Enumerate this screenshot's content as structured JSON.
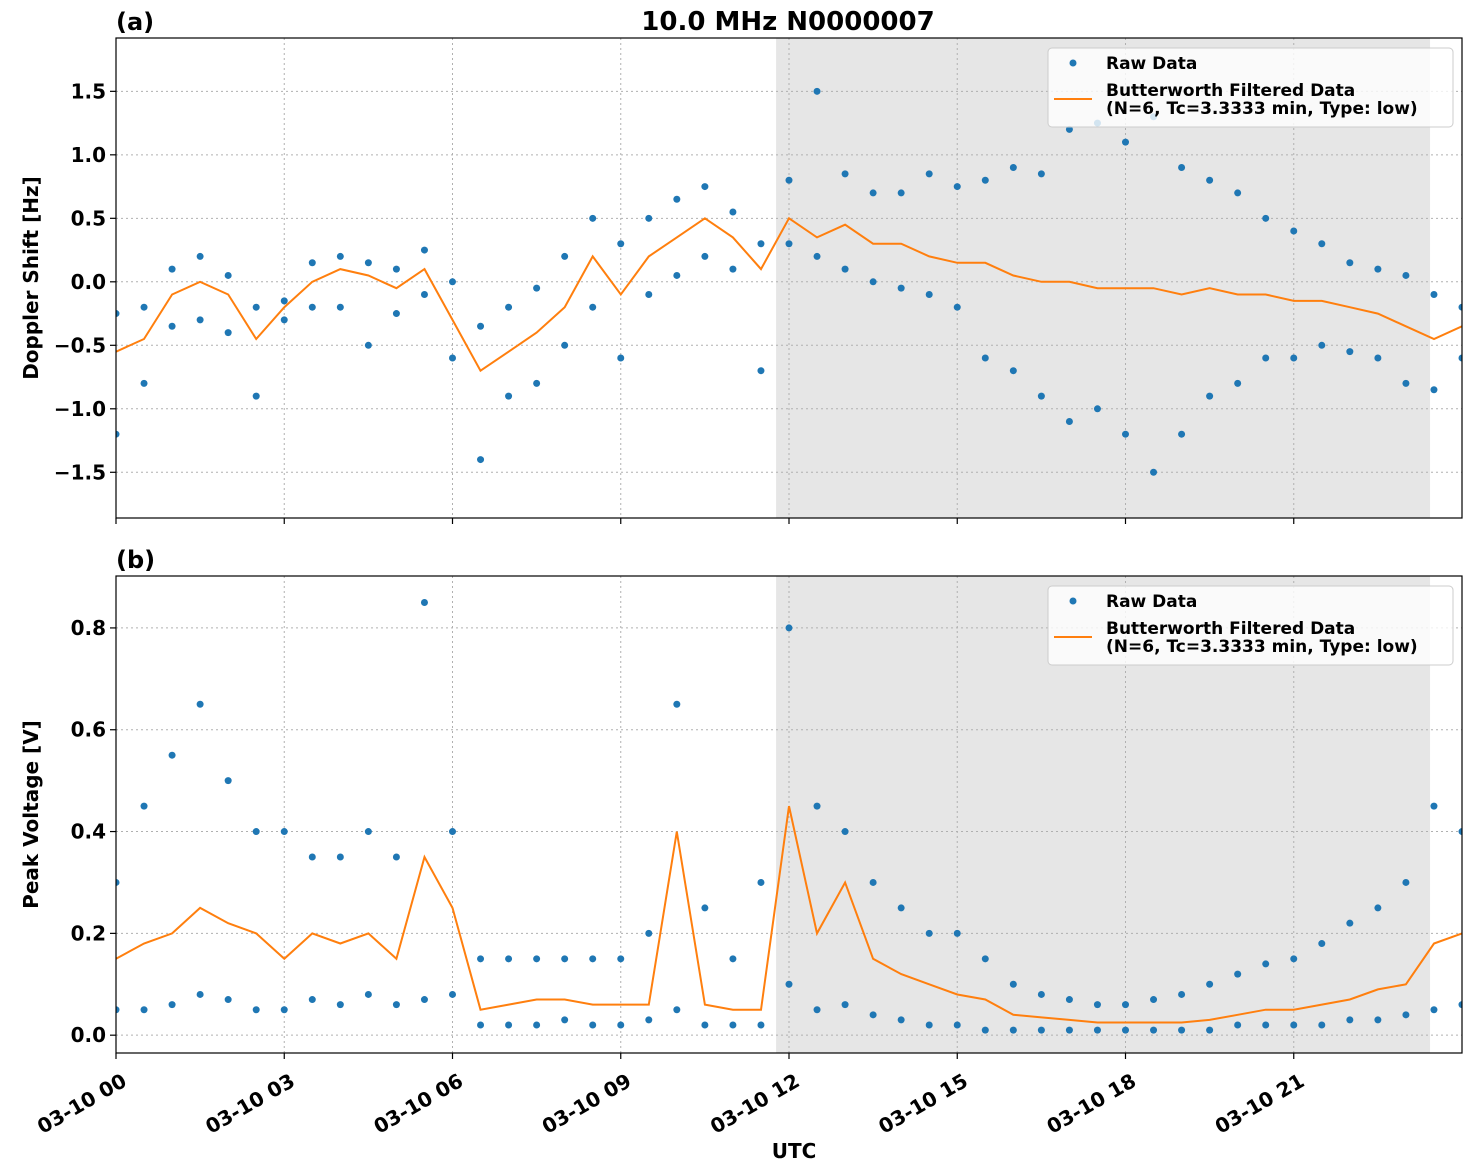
{
  "chart_data": [
    {
      "type": "line",
      "panel_label": "(a)",
      "title": "10.0 MHz N0000007",
      "ylabel": "Doppler Shift [Hz]",
      "xlim": [
        0,
        24
      ],
      "xticks": [
        0,
        3,
        6,
        9,
        12,
        15,
        18,
        21
      ],
      "ylim": [
        -1.86,
        1.92
      ],
      "yticks": [
        {
          "value": -1.5,
          "label": "−1.5"
        },
        {
          "value": -1.0,
          "label": "−1.0"
        },
        {
          "value": -0.5,
          "label": "−0.5"
        },
        {
          "value": 0,
          "label": "0.0"
        },
        0.5,
        {
          "value": 1.0,
          "label": "1.0"
        },
        1.5
      ],
      "grid": true,
      "legend": "upper right",
      "shaded_span": [
        11.77,
        23.43
      ],
      "series": [
        {
          "name": "Raw Data",
          "color": "#1f77b4",
          "mode": "scatter",
          "x": [
            0,
            0.5,
            1,
            1.5,
            2,
            2.5,
            3,
            3.5,
            4,
            4.5,
            5,
            5.5,
            6,
            6.5,
            7,
            7.5,
            8,
            8.5,
            9,
            9.5,
            10,
            10.5,
            11,
            11.5,
            12,
            12.5,
            13,
            13.5,
            14,
            14.5,
            15,
            15.5,
            16,
            16.5,
            17,
            17.5,
            18,
            18.5,
            19,
            19.5,
            20,
            20.5,
            21,
            21.5,
            22,
            22.5,
            23,
            23.5,
            24,
            0,
            0.5,
            1,
            1.5,
            2,
            2.5,
            3,
            3.5,
            4,
            4.5,
            5,
            5.5,
            6,
            6.5,
            7,
            7.5,
            8,
            8.5,
            9,
            9.5,
            10,
            10.5,
            11,
            11.5,
            12,
            12.5,
            13,
            13.5,
            14,
            14.5,
            15,
            15.5,
            16,
            16.5,
            17,
            17.5,
            18,
            18.5,
            19,
            19.5,
            20,
            20.5,
            21,
            21.5,
            22,
            22.5,
            23,
            23.5,
            24
          ],
          "values": [
            -0.25,
            -0.2,
            0.1,
            0.2,
            0.05,
            -0.2,
            -0.15,
            0.15,
            0.2,
            0.15,
            0.1,
            0.25,
            0.0,
            -0.35,
            -0.2,
            -0.05,
            0.2,
            0.5,
            0.3,
            0.5,
            0.65,
            0.75,
            0.55,
            0.3,
            0.8,
            1.5,
            0.85,
            0.7,
            0.7,
            0.85,
            0.75,
            0.8,
            0.9,
            0.85,
            1.2,
            1.25,
            1.1,
            1.3,
            0.9,
            0.8,
            0.7,
            0.5,
            0.4,
            0.3,
            0.15,
            0.1,
            0.05,
            -0.1,
            -0.2,
            -1.2,
            -0.8,
            -0.35,
            -0.3,
            -0.4,
            -0.9,
            -0.3,
            -0.2,
            -0.2,
            -0.5,
            -0.25,
            -0.1,
            -0.6,
            -1.4,
            -0.9,
            -0.8,
            -0.5,
            -0.2,
            -0.6,
            -0.1,
            0.05,
            0.2,
            0.1,
            -0.7,
            0.3,
            0.2,
            0.1,
            0.0,
            -0.05,
            -0.1,
            -0.2,
            -0.6,
            -0.7,
            -0.9,
            -1.1,
            -1.0,
            -1.2,
            -1.5,
            -1.2,
            -0.9,
            -0.8,
            -0.6,
            -0.6,
            -0.5,
            -0.55,
            -0.6,
            -0.8,
            -0.85,
            -0.6
          ]
        },
        {
          "name": "Butterworth Filtered Data\n(N=6, Tc=3.3333 min, Type: low)",
          "color": "#ff7f0e",
          "mode": "line",
          "x": [
            0,
            0.5,
            1,
            1.5,
            2,
            2.5,
            3,
            3.5,
            4,
            4.5,
            5,
            5.5,
            6,
            6.5,
            7,
            7.5,
            8,
            8.5,
            9,
            9.5,
            10,
            10.5,
            11,
            11.5,
            12,
            12.5,
            13,
            13.5,
            14,
            14.5,
            15,
            15.5,
            16,
            16.5,
            17,
            17.5,
            18,
            18.5,
            19,
            19.5,
            20,
            20.5,
            21,
            21.5,
            22,
            22.5,
            23,
            23.5,
            24
          ],
          "values": [
            -0.55,
            -0.45,
            -0.1,
            0.0,
            -0.1,
            -0.45,
            -0.2,
            0.0,
            0.1,
            0.05,
            -0.05,
            0.1,
            -0.3,
            -0.7,
            -0.55,
            -0.4,
            -0.2,
            0.2,
            -0.1,
            0.2,
            0.35,
            0.5,
            0.35,
            0.1,
            0.5,
            0.35,
            0.45,
            0.3,
            0.3,
            0.2,
            0.15,
            0.15,
            0.05,
            0.0,
            0.0,
            -0.05,
            -0.05,
            -0.05,
            -0.1,
            -0.05,
            -0.1,
            -0.1,
            -0.15,
            -0.15,
            -0.2,
            -0.25,
            -0.35,
            -0.45,
            -0.35
          ]
        }
      ]
    },
    {
      "type": "line",
      "panel_label": "(b)",
      "ylabel": "Peak Voltage [V]",
      "xlabel": "UTC",
      "xlim": [
        0,
        24
      ],
      "xticks": [
        {
          "value": 0,
          "label": "03-10 00"
        },
        {
          "value": 3,
          "label": "03-10 03"
        },
        {
          "value": 6,
          "label": "03-10 06"
        },
        {
          "value": 9,
          "label": "03-10 09"
        },
        {
          "value": 12,
          "label": "03-10 12"
        },
        {
          "value": 15,
          "label": "03-10 15"
        },
        {
          "value": 18,
          "label": "03-10 18"
        },
        {
          "value": 21,
          "label": "03-10 21"
        }
      ],
      "ylim": [
        -0.035,
        0.902
      ],
      "yticks": [
        {
          "value": 0,
          "label": "0.0"
        },
        0.2,
        0.4,
        0.6,
        0.8
      ],
      "grid": true,
      "legend": "upper right",
      "shaded_span": [
        11.77,
        23.43
      ],
      "series": [
        {
          "name": "Raw Data",
          "color": "#1f77b4",
          "mode": "scatter",
          "x": [
            0,
            0.5,
            1,
            1.5,
            2,
            2.5,
            3,
            3.5,
            4,
            4.5,
            5,
            5.5,
            6,
            6.5,
            7,
            7.5,
            8,
            8.5,
            9,
            9.5,
            10,
            10.5,
            11,
            11.5,
            12,
            12.5,
            13,
            13.5,
            14,
            14.5,
            15,
            15.5,
            16,
            16.5,
            17,
            17.5,
            18,
            18.5,
            19,
            19.5,
            20,
            20.5,
            21,
            21.5,
            22,
            22.5,
            23,
            23.5,
            24,
            0,
            0.5,
            1,
            1.5,
            2,
            2.5,
            3,
            3.5,
            4,
            4.5,
            5,
            5.5,
            6,
            6.5,
            7,
            7.5,
            8,
            8.5,
            9,
            9.5,
            10,
            10.5,
            11,
            11.5,
            12,
            12.5,
            13,
            13.5,
            14,
            14.5,
            15,
            15.5,
            16,
            16.5,
            17,
            17.5,
            18,
            18.5,
            19,
            19.5,
            20,
            20.5,
            21,
            21.5,
            22,
            22.5,
            23,
            23.5,
            24
          ],
          "values": [
            0.3,
            0.45,
            0.55,
            0.65,
            0.5,
            0.4,
            0.4,
            0.35,
            0.35,
            0.4,
            0.35,
            0.85,
            0.4,
            0.15,
            0.15,
            0.15,
            0.15,
            0.15,
            0.15,
            0.2,
            0.65,
            0.25,
            0.15,
            0.3,
            0.8,
            0.45,
            0.4,
            0.3,
            0.25,
            0.2,
            0.2,
            0.15,
            0.1,
            0.08,
            0.07,
            0.06,
            0.06,
            0.07,
            0.08,
            0.1,
            0.12,
            0.14,
            0.15,
            0.18,
            0.22,
            0.25,
            0.3,
            0.45,
            0.4,
            0.05,
            0.05,
            0.06,
            0.08,
            0.07,
            0.05,
            0.05,
            0.07,
            0.06,
            0.08,
            0.06,
            0.07,
            0.08,
            0.02,
            0.02,
            0.02,
            0.03,
            0.02,
            0.02,
            0.03,
            0.05,
            0.02,
            0.02,
            0.02,
            0.1,
            0.05,
            0.06,
            0.04,
            0.03,
            0.02,
            0.02,
            0.01,
            0.01,
            0.01,
            0.01,
            0.01,
            0.01,
            0.01,
            0.01,
            0.01,
            0.02,
            0.02,
            0.02,
            0.02,
            0.03,
            0.03,
            0.04,
            0.05,
            0.06
          ]
        },
        {
          "name": "Butterworth Filtered Data\n(N=6, Tc=3.3333 min, Type: low)",
          "color": "#ff7f0e",
          "mode": "line",
          "x": [
            0,
            0.5,
            1,
            1.5,
            2,
            2.5,
            3,
            3.5,
            4,
            4.5,
            5,
            5.5,
            6,
            6.5,
            7,
            7.5,
            8,
            8.5,
            9,
            9.5,
            10,
            10.5,
            11,
            11.5,
            12,
            12.5,
            13,
            13.5,
            14,
            14.5,
            15,
            15.5,
            16,
            16.5,
            17,
            17.5,
            18,
            18.5,
            19,
            19.5,
            20,
            20.5,
            21,
            21.5,
            22,
            22.5,
            23,
            23.5,
            24
          ],
          "values": [
            0.15,
            0.18,
            0.2,
            0.25,
            0.22,
            0.2,
            0.15,
            0.2,
            0.18,
            0.2,
            0.15,
            0.35,
            0.25,
            0.05,
            0.06,
            0.07,
            0.07,
            0.06,
            0.06,
            0.06,
            0.4,
            0.06,
            0.05,
            0.05,
            0.45,
            0.2,
            0.3,
            0.15,
            0.12,
            0.1,
            0.08,
            0.07,
            0.04,
            0.035,
            0.03,
            0.025,
            0.025,
            0.025,
            0.025,
            0.03,
            0.04,
            0.05,
            0.05,
            0.06,
            0.07,
            0.09,
            0.1,
            0.18,
            0.2
          ]
        }
      ]
    }
  ]
}
